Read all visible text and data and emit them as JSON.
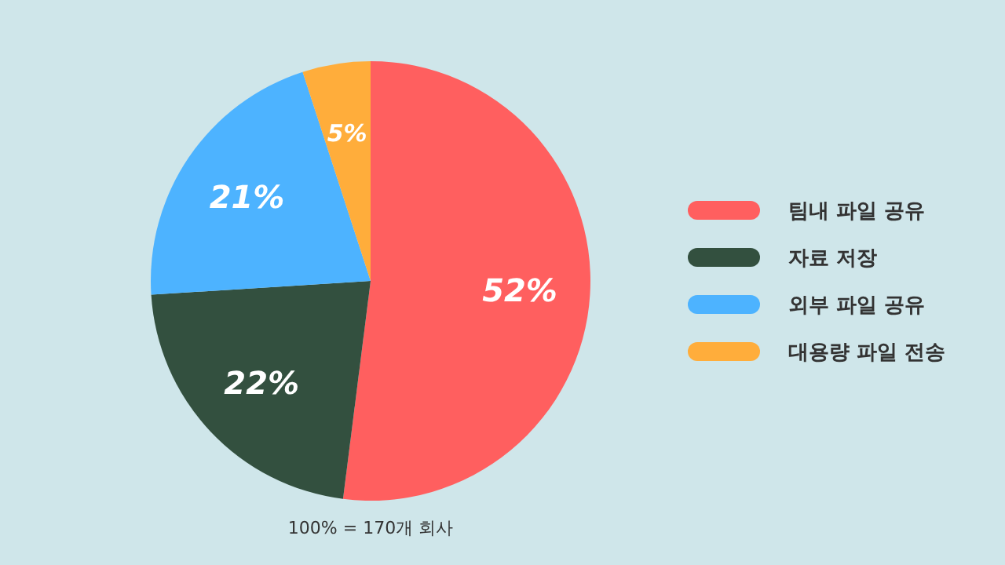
{
  "chart_data": {
    "type": "pie",
    "categories": [
      "팀내 파일 공유",
      "자료 저장",
      "외부 파일 공유",
      "대용량 파일 전송"
    ],
    "values": [
      52,
      22,
      21,
      5
    ],
    "colors": [
      "#ff5f5f",
      "#33503f",
      "#4db3ff",
      "#ffad3b"
    ],
    "value_labels": [
      "52%",
      "22%",
      "21%",
      "5%"
    ],
    "legend": "right",
    "annotations": [
      "100% = 170개 회사"
    ]
  }
}
